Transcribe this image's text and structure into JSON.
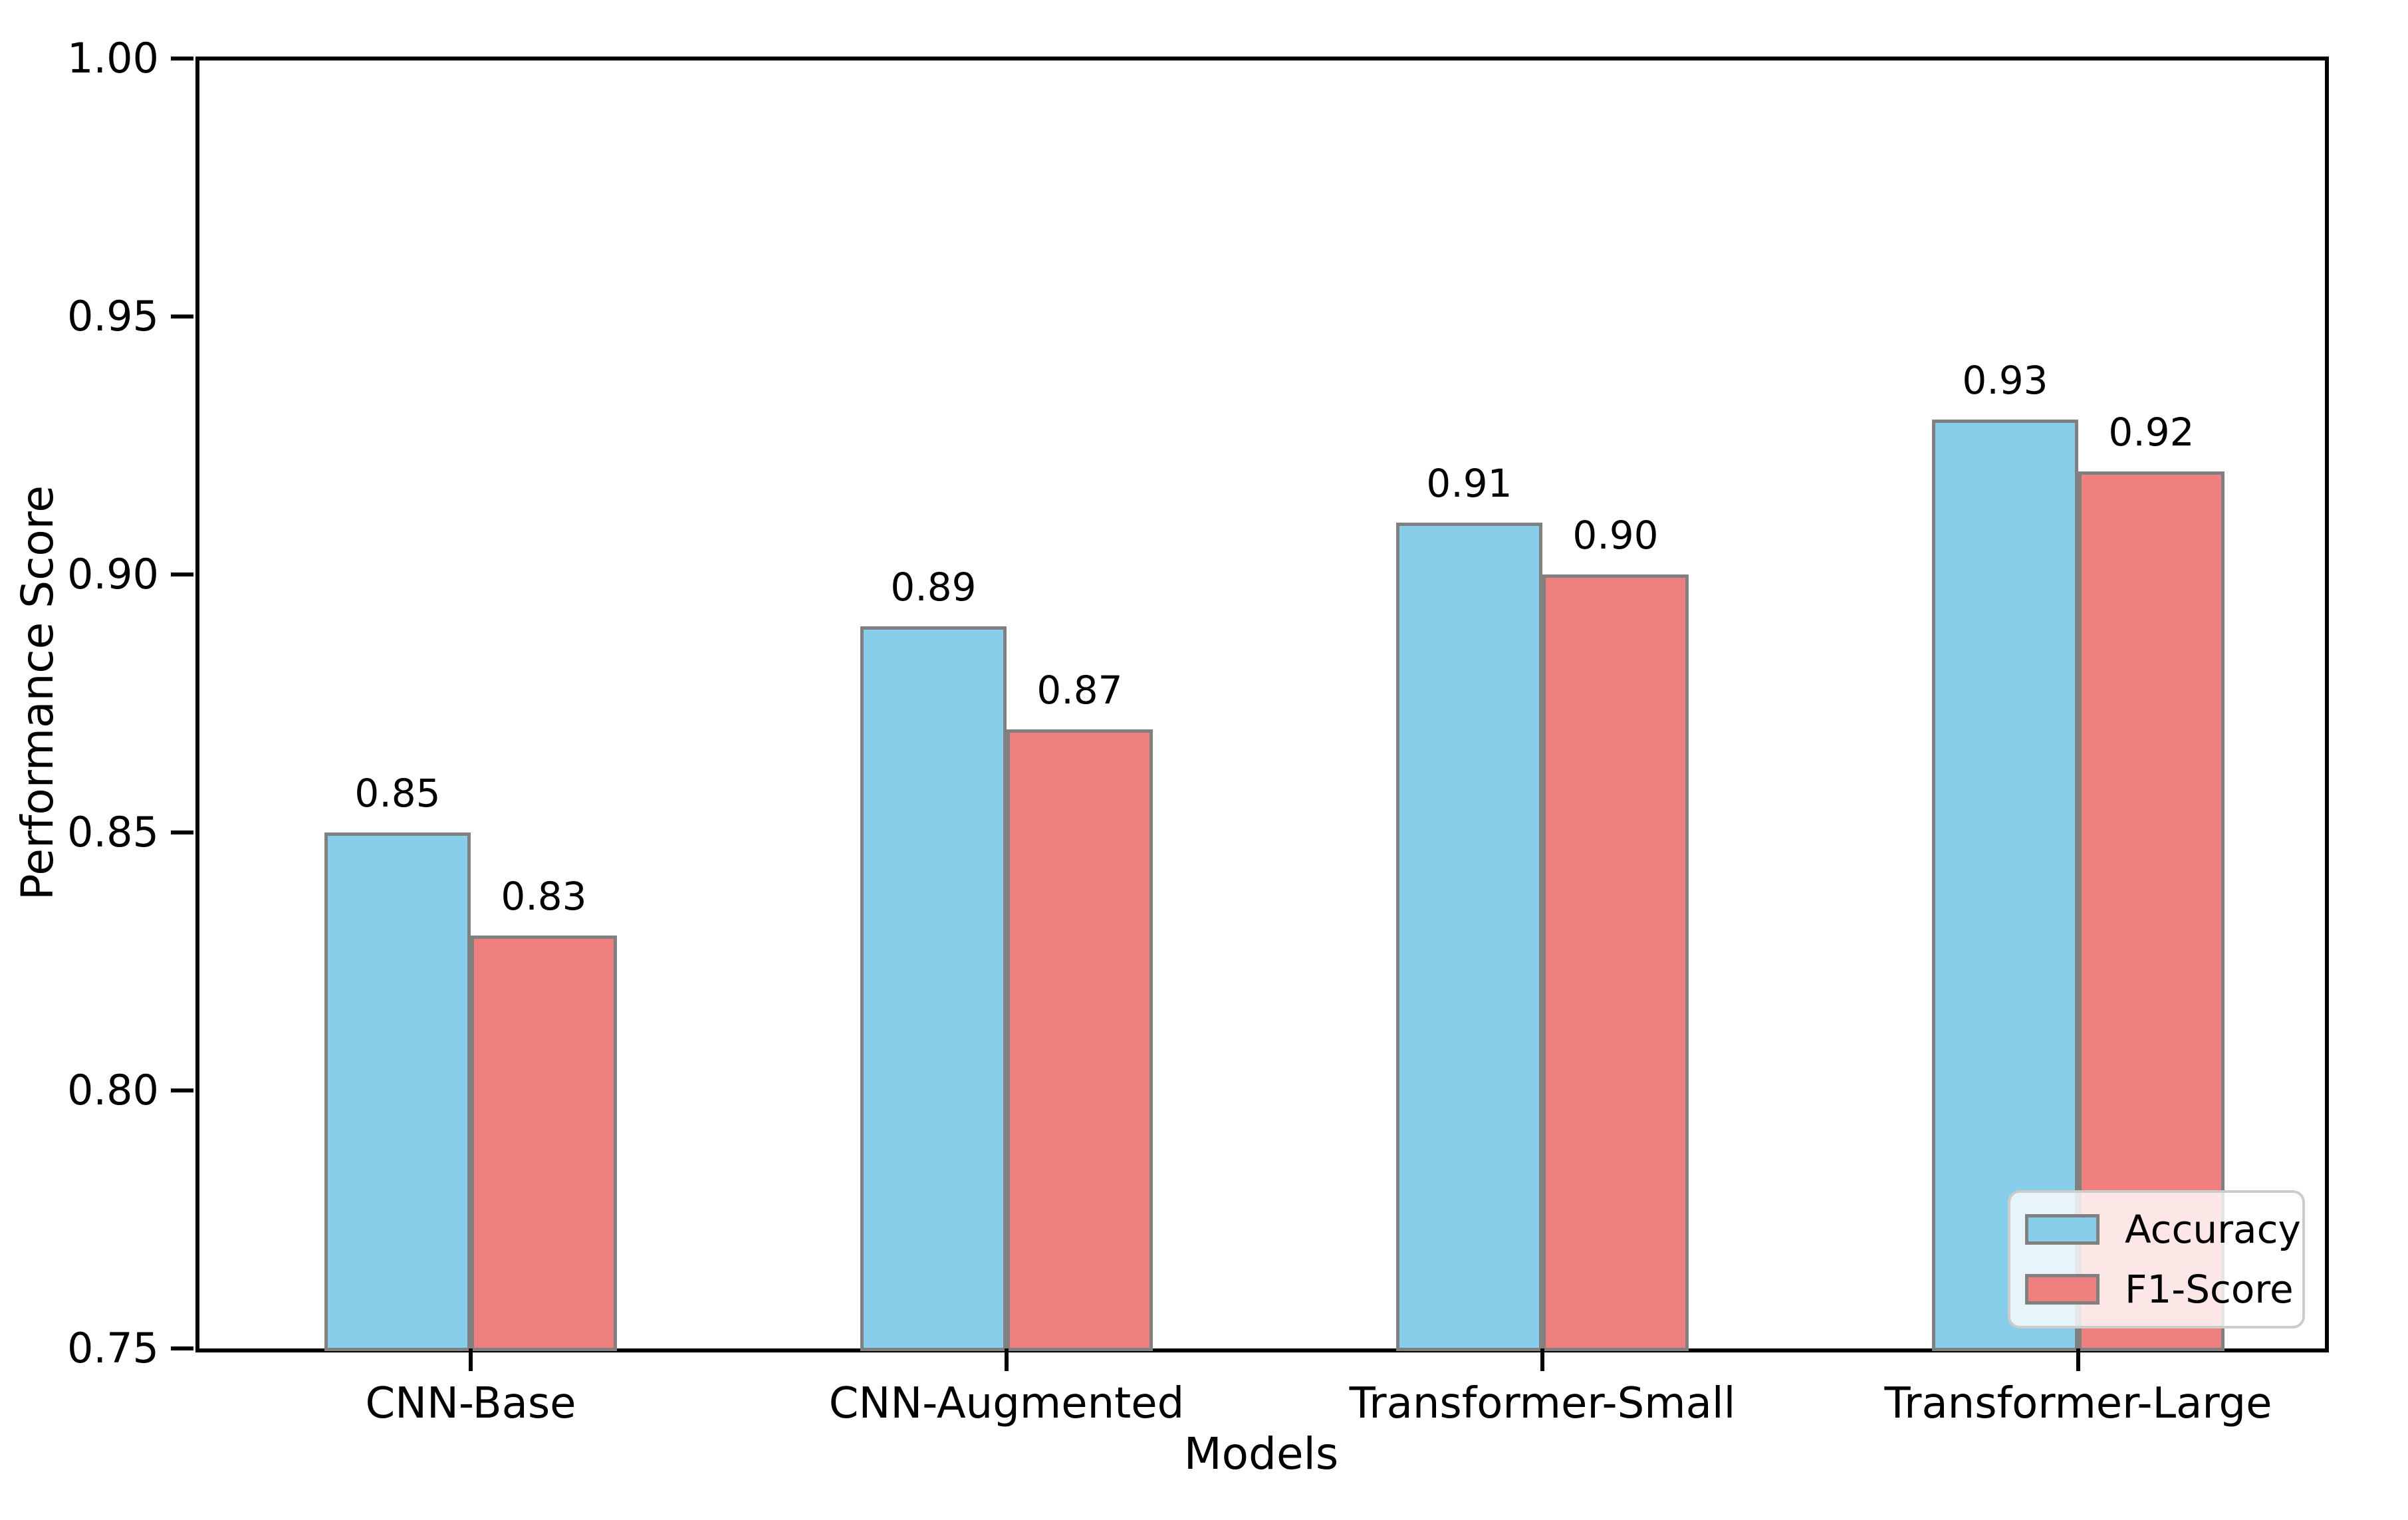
{
  "chart_data": {
    "type": "bar",
    "title": "",
    "xlabel": "Models",
    "ylabel": "Performance Score",
    "categories": [
      "CNN-Base",
      "CNN-Augmented",
      "Transformer-Small",
      "Transformer-Large"
    ],
    "series": [
      {
        "name": "Accuracy",
        "color": "#87CEEB",
        "values": [
          0.85,
          0.89,
          0.91,
          0.93
        ],
        "bar_labels": [
          "0.85",
          "0.89",
          "0.91",
          "0.93"
        ]
      },
      {
        "name": "F1-Score",
        "color": "#F08080",
        "values": [
          0.83,
          0.87,
          0.9,
          0.92
        ],
        "bar_labels": [
          "0.83",
          "0.87",
          "0.90",
          "0.92"
        ]
      }
    ],
    "ylim": [
      0.75,
      1.0
    ],
    "yticks": [
      0.75,
      0.8,
      0.85,
      0.9,
      0.95,
      1.0
    ],
    "ytick_labels": [
      "0.75",
      "0.80",
      "0.85",
      "0.90",
      "0.95",
      "1.00"
    ],
    "bar_edge_color": "#808080",
    "axis_color": "#000000",
    "background_color": "#ffffff",
    "grid": false,
    "legend_position": "lower right"
  }
}
